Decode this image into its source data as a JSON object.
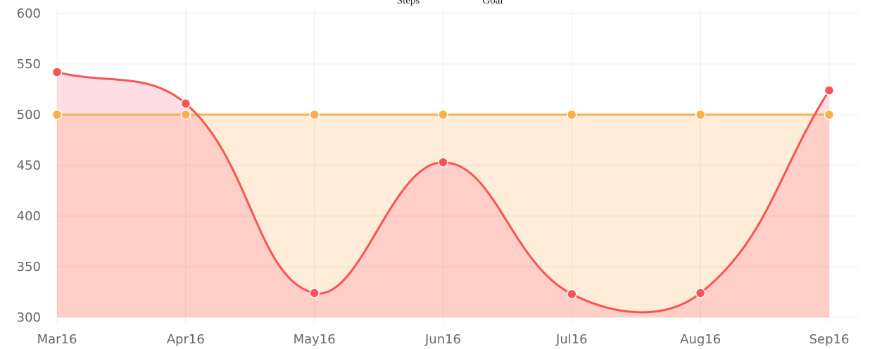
{
  "chart_data": {
    "type": "line",
    "categories": [
      "Mar16",
      "Apr16",
      "May16",
      "Jun16",
      "Jul16",
      "Aug16",
      "Sep16"
    ],
    "series": [
      {
        "name": "Steps",
        "color": "#f95454",
        "fill": "rgba(255,99,132,0.22)",
        "values": [
          542,
          511,
          324,
          453,
          323,
          324,
          524
        ]
      },
      {
        "name": "Goal",
        "color": "#fbad50",
        "fill": "rgba(255,159,64,0.2)",
        "values": [
          500,
          500,
          500,
          500,
          500,
          500,
          500
        ]
      }
    ],
    "ylim": [
      300,
      600
    ],
    "yticks": [
      300,
      350,
      400,
      450,
      500,
      550,
      600
    ],
    "grid": true,
    "smooth": true
  }
}
